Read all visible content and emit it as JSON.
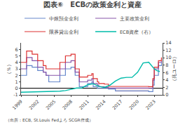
{
  "chart_data": {
    "type": "line",
    "title": "図表⑥　ECBの政策金利と資産",
    "ylabel": "（％）",
    "y2label": "（兆ユーロ）",
    "annotations": [
      "（出所：ECB, St.Louis Fedよろ SCGR作成）"
    ],
    "xlim": [
      1999,
      2024.5
    ],
    "xticks": [
      1999,
      2002,
      2005,
      2008,
      2011,
      2014,
      2017,
      2020,
      2023
    ],
    "ylim": [
      -1,
      7
    ],
    "yticks": [
      -1,
      0,
      1,
      2,
      3,
      4,
      5,
      6
    ],
    "y2lim": [
      0,
      14
    ],
    "y2ticks": [
      0,
      2,
      4,
      6,
      8,
      10,
      12,
      14
    ],
    "grid": false,
    "legend": "upper left",
    "bands": [
      {
        "x": [
          2016,
          2022
        ],
        "y": [
          -0.55,
          0.0
        ],
        "color": "#ff8888"
      }
    ],
    "series": [
      {
        "name": "中銀預金金利",
        "type": "step",
        "color": "#6688cc",
        "x": [
          1999,
          2000,
          2001,
          2002,
          2003,
          2003.5,
          2004,
          2005,
          2006,
          2007,
          2008,
          2008.75,
          2009.5,
          2010,
          2011,
          2011.75,
          2012,
          2012.75,
          2013,
          2014,
          2014.75,
          2016,
          2022,
          2022.75,
          2023,
          2023.75,
          2024.3
        ],
        "values": [
          2.0,
          3.5,
          3.25,
          2.75,
          2.5,
          2.0,
          1.0,
          1.0,
          2.0,
          3.0,
          3.25,
          2.0,
          0.25,
          0.25,
          0.75,
          1.0,
          0.25,
          0.0,
          0.0,
          0.0,
          -0.1,
          -0.4,
          -0.5,
          0.5,
          2.0,
          3.5,
          4.0
        ]
      },
      {
        "name": "主要政策金利",
        "type": "step",
        "color": "#8855aa",
        "x": [
          1999,
          2000,
          2001,
          2002,
          2003,
          2003.5,
          2004,
          2005,
          2006,
          2007,
          2008,
          2008.75,
          2009.5,
          2010,
          2011,
          2011.75,
          2012,
          2012.75,
          2013,
          2014,
          2014.75,
          2016,
          2022,
          2022.75,
          2023,
          2023.75,
          2024.3
        ],
        "values": [
          3.0,
          4.75,
          4.25,
          3.25,
          2.5,
          2.0,
          2.0,
          2.0,
          3.0,
          4.0,
          4.25,
          2.5,
          1.0,
          1.0,
          1.25,
          1.5,
          0.75,
          0.5,
          0.25,
          0.15,
          0.05,
          0.05,
          0.0,
          1.25,
          3.0,
          4.0,
          4.5
        ]
      },
      {
        "name": "限界貸出金利",
        "type": "step",
        "color": "#dd3333",
        "x": [
          1999,
          2000,
          2001,
          2002,
          2003,
          2003.5,
          2004,
          2005,
          2006,
          2007,
          2008,
          2008.75,
          2009.5,
          2010,
          2011,
          2011.75,
          2012,
          2012.75,
          2013,
          2014,
          2014.75,
          2016,
          2022,
          2022.75,
          2023,
          2023.75,
          2024.3
        ],
        "values": [
          4.0,
          5.75,
          5.25,
          4.25,
          3.5,
          3.0,
          3.0,
          3.0,
          4.0,
          5.0,
          5.25,
          3.0,
          1.75,
          1.75,
          2.0,
          2.25,
          1.5,
          1.0,
          0.75,
          0.65,
          0.3,
          0.3,
          0.25,
          1.5,
          3.25,
          4.25,
          4.75
        ]
      },
      {
        "name": "ECB資産（右）",
        "type": "line",
        "axis": "y2",
        "color": "#00bbaa",
        "x": [
          1999,
          2000,
          2001,
          2002,
          2003,
          2004,
          2005,
          2006,
          2007,
          2008,
          2009,
          2010,
          2011,
          2012,
          2013,
          2014,
          2015,
          2016,
          2017,
          2018,
          2019,
          2020,
          2021,
          2022,
          2022.5,
          2023,
          2023.5,
          2024
        ],
        "values": [
          0.7,
          0.75,
          0.78,
          0.8,
          0.82,
          0.85,
          0.9,
          1.0,
          1.15,
          1.5,
          1.85,
          1.9,
          2.7,
          3.0,
          2.3,
          2.0,
          2.6,
          3.7,
          4.5,
          4.7,
          4.7,
          6.1,
          8.6,
          8.8,
          8.0,
          7.0,
          6.5,
          6.3
        ]
      }
    ]
  }
}
